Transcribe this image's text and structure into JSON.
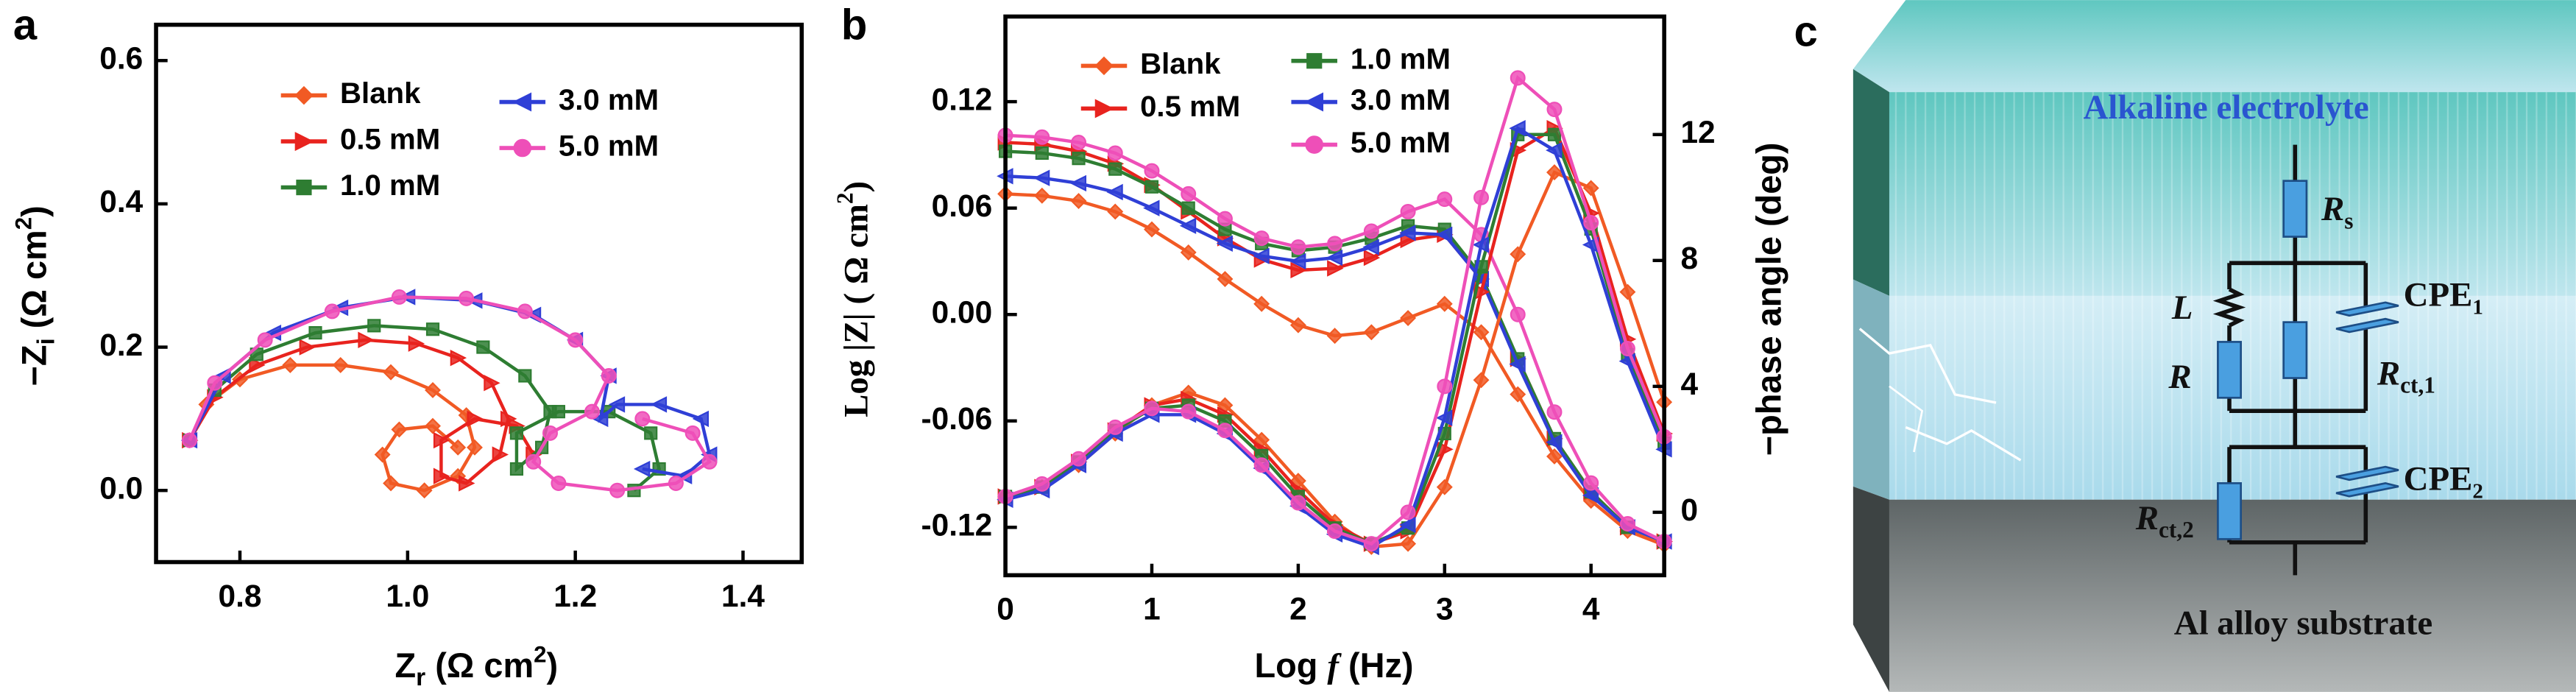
{
  "chart_data": [
    {
      "type": "line",
      "panel_label": "a",
      "x_label": [
        "Z",
        "r",
        " (Ω cm",
        "2",
        ")"
      ],
      "y_label": [
        "−Z",
        "i",
        " (Ω cm",
        "2",
        ")"
      ],
      "xlim": [
        0.7,
        1.47
      ],
      "ylim": [
        -0.1,
        0.65
      ],
      "xticks": [
        0.8,
        {
          "value": 1,
          "label": "1.0"
        },
        1.2,
        1.4
      ],
      "yticks": [
        {
          "value": 0,
          "label": "0.0"
        },
        0.2,
        0.4,
        0.6
      ],
      "series": [
        {
          "name": "Blank",
          "color": "#f15a24",
          "marker": "diamond",
          "x": [
            0.74,
            0.76,
            0.8,
            0.86,
            0.92,
            0.98,
            1.03,
            1.07,
            1.08,
            1.06,
            1.02,
            0.98,
            0.97,
            0.99,
            1.03,
            1.06
          ],
          "values": [
            0.07,
            0.12,
            0.155,
            0.175,
            0.175,
            0.165,
            0.14,
            0.105,
            0.06,
            0.02,
            0.0,
            0.01,
            0.05,
            0.085,
            0.09,
            0.06
          ]
        },
        {
          "name": "0.5 mM",
          "color": "#e8231e",
          "marker": "triangle-right",
          "x": [
            0.74,
            0.77,
            0.82,
            0.88,
            0.95,
            1.01,
            1.06,
            1.1,
            1.12,
            1.11,
            1.07,
            1.04,
            1.04,
            1.08,
            1.13,
            1.15
          ],
          "values": [
            0.07,
            0.13,
            0.175,
            0.2,
            0.21,
            0.205,
            0.185,
            0.15,
            0.1,
            0.05,
            0.01,
            0.02,
            0.07,
            0.1,
            0.09,
            0.05
          ]
        },
        {
          "name": "1.0 mM",
          "color": "#2e7d32",
          "marker": "square",
          "x": [
            0.74,
            0.77,
            0.82,
            0.89,
            0.96,
            1.03,
            1.09,
            1.14,
            1.17,
            1.16,
            1.13,
            1.13,
            1.18,
            1.24,
            1.29,
            1.3,
            1.27
          ],
          "values": [
            0.07,
            0.14,
            0.19,
            0.22,
            0.23,
            0.225,
            0.2,
            0.16,
            0.11,
            0.06,
            0.03,
            0.08,
            0.11,
            0.11,
            0.08,
            0.03,
            0.0
          ]
        },
        {
          "name": "3.0 mM",
          "color": "#2f3fd6",
          "marker": "triangle-left",
          "x": [
            0.74,
            0.78,
            0.84,
            0.92,
            1.0,
            1.08,
            1.15,
            1.2,
            1.24,
            1.23,
            1.25,
            1.3,
            1.35,
            1.36,
            1.33,
            1.28
          ],
          "values": [
            0.07,
            0.16,
            0.22,
            0.255,
            0.27,
            0.265,
            0.245,
            0.21,
            0.16,
            0.1,
            0.12,
            0.12,
            0.1,
            0.05,
            0.02,
            0.03
          ]
        },
        {
          "name": "5.0 mM",
          "color": "#ee4fb8",
          "marker": "circle",
          "x": [
            0.74,
            0.77,
            0.83,
            0.91,
            0.99,
            1.07,
            1.14,
            1.2,
            1.24,
            1.22,
            1.17,
            1.15,
            1.18,
            1.25,
            1.32,
            1.36,
            1.34,
            1.28
          ],
          "values": [
            0.07,
            0.15,
            0.21,
            0.25,
            0.27,
            0.268,
            0.25,
            0.21,
            0.16,
            0.11,
            0.08,
            0.04,
            0.01,
            0.0,
            0.01,
            0.04,
            0.08,
            0.1
          ]
        }
      ]
    },
    {
      "type": "line",
      "panel_label": "b",
      "x_label": [
        "Log ",
        "f",
        " (Hz)"
      ],
      "y_label": [
        "Log |Z| ( Ω cm",
        "2",
        ")"
      ],
      "y2_label": "−phase angle (deg)",
      "x": [
        0,
        0.25,
        0.5,
        0.75,
        1,
        1.25,
        1.5,
        1.75,
        2,
        2.25,
        2.5,
        2.75,
        3,
        3.25,
        3.5,
        3.75,
        4,
        4.25,
        4.5
      ],
      "xlim": [
        0,
        4.5
      ],
      "ylim": [
        -0.147,
        0.168
      ],
      "y2lim": [
        -2,
        15.75
      ],
      "xticks": [
        0,
        1,
        2,
        3,
        4
      ],
      "yticks": [
        0.12,
        0.06,
        {
          "value": 0,
          "label": "0.00"
        },
        -0.06,
        -0.12
      ],
      "y2ticks": [
        0,
        4,
        8,
        12
      ],
      "series": [
        {
          "name": "Blank",
          "color": "#f15a24",
          "marker": "diamond",
          "values": [
            0.068,
            0.067,
            0.064,
            0.058,
            0.048,
            0.035,
            0.02,
            0.006,
            -0.006,
            -0.012,
            -0.01,
            -0.002,
            0.006,
            -0.01,
            -0.045,
            -0.08,
            -0.105,
            -0.122,
            -0.13
          ]
        },
        {
          "name": "0.5 mM",
          "color": "#e8231e",
          "marker": "triangle-right",
          "values": [
            0.097,
            0.096,
            0.092,
            0.085,
            0.073,
            0.058,
            0.043,
            0.031,
            0.025,
            0.026,
            0.032,
            0.042,
            0.045,
            0.02,
            -0.025,
            -0.07,
            -0.1,
            -0.12,
            -0.128
          ]
        },
        {
          "name": "1.0 mM",
          "color": "#2e7d32",
          "marker": "square",
          "values": [
            0.092,
            0.091,
            0.088,
            0.082,
            0.072,
            0.06,
            0.048,
            0.04,
            0.036,
            0.038,
            0.043,
            0.05,
            0.048,
            0.022,
            -0.025,
            -0.07,
            -0.1,
            -0.12,
            -0.128
          ]
        },
        {
          "name": "3.0 mM",
          "color": "#2f3fd6",
          "marker": "triangle-left",
          "values": [
            0.078,
            0.077,
            0.074,
            0.069,
            0.06,
            0.05,
            0.04,
            0.033,
            0.03,
            0.032,
            0.038,
            0.046,
            0.045,
            0.02,
            -0.028,
            -0.072,
            -0.102,
            -0.12,
            -0.128
          ]
        },
        {
          "name": "5.0 mM",
          "color": "#ee4fb8",
          "marker": "circle",
          "values": [
            0.101,
            0.1,
            0.097,
            0.091,
            0.081,
            0.068,
            0.054,
            0.043,
            0.038,
            0.04,
            0.047,
            0.058,
            0.065,
            0.045,
            0.0,
            -0.055,
            -0.095,
            -0.118,
            -0.128
          ]
        },
        {
          "name": "Blank",
          "color": "#f15a24",
          "marker": "diamond",
          "axis": "y2",
          "values": [
            0.5,
            0.8,
            1.5,
            2.5,
            3.4,
            3.8,
            3.4,
            2.3,
            1.0,
            -0.3,
            -1.1,
            -1.0,
            0.8,
            4.2,
            8.2,
            10.8,
            10.3,
            7.0,
            3.5
          ]
        },
        {
          "name": "0.5 mM",
          "color": "#e8231e",
          "marker": "triangle-right",
          "axis": "y2",
          "values": [
            0.5,
            0.8,
            1.6,
            2.6,
            3.4,
            3.6,
            3.1,
            2.0,
            0.7,
            -0.4,
            -1.0,
            -0.6,
            2.0,
            7.0,
            11.5,
            12.2,
            9.5,
            5.5,
            2.5
          ]
        },
        {
          "name": "1.0 mM",
          "color": "#2e7d32",
          "marker": "square",
          "axis": "y2",
          "values": [
            0.5,
            0.8,
            1.6,
            2.6,
            3.3,
            3.4,
            2.9,
            1.8,
            0.5,
            -0.5,
            -1.0,
            -0.5,
            2.5,
            7.8,
            12.0,
            12.0,
            9.0,
            5.0,
            2.2
          ]
        },
        {
          "name": "3.0 mM",
          "color": "#2f3fd6",
          "marker": "triangle-left",
          "axis": "y2",
          "values": [
            0.4,
            0.7,
            1.5,
            2.5,
            3.1,
            3.1,
            2.5,
            1.4,
            0.2,
            -0.7,
            -1.1,
            -0.4,
            3.0,
            8.5,
            12.2,
            11.5,
            8.5,
            4.8,
            2.0
          ]
        },
        {
          "name": "5.0 mM",
          "color": "#ee4fb8",
          "marker": "circle",
          "axis": "y2",
          "values": [
            0.5,
            0.9,
            1.7,
            2.7,
            3.3,
            3.2,
            2.6,
            1.5,
            0.3,
            -0.6,
            -1.0,
            0.0,
            4.0,
            10.0,
            13.8,
            12.8,
            9.2,
            5.2,
            2.4
          ]
        }
      ]
    }
  ],
  "diagram": {
    "panel_label": "c",
    "top_layer": "Alkaline electrolyte",
    "bottom_layer": "Al alloy substrate",
    "components": [
      {
        "symbol": "R",
        "subscript": "s"
      },
      {
        "symbol": "L"
      },
      {
        "symbol": "R"
      },
      {
        "symbol": "CPE",
        "subscript": "1"
      },
      {
        "symbol": "R",
        "subscript": "ct,1"
      },
      {
        "symbol": "R",
        "subscript": "ct,2"
      },
      {
        "symbol": "CPE",
        "subscript": "2"
      }
    ]
  }
}
